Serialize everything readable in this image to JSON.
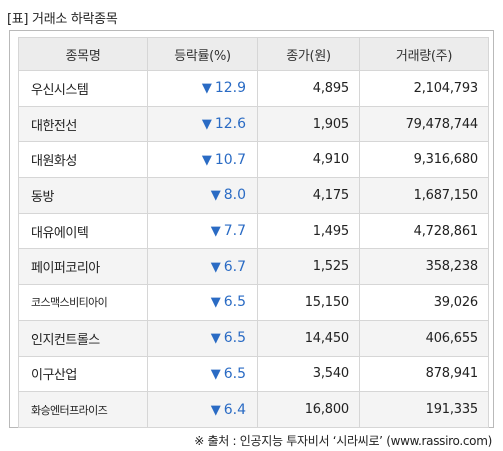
{
  "caption": "[표] 거래소 하락종목",
  "headers": [
    "종목명",
    "등락률(%)",
    "종가(원)",
    "거래량(주)"
  ],
  "down_arrow": "▼",
  "accent_color": "#2a6bc4",
  "rows": [
    {
      "name": "우신시스템",
      "rate": "12.9",
      "close": "4,895",
      "volume": "2,104,793"
    },
    {
      "name": "대한전선",
      "rate": "12.6",
      "close": "1,905",
      "volume": "79,478,744"
    },
    {
      "name": "대원화성",
      "rate": "10.7",
      "close": "4,910",
      "volume": "9,316,680"
    },
    {
      "name": "동방",
      "rate": "8.0",
      "close": "4,175",
      "volume": "1,687,150"
    },
    {
      "name": "대유에이텍",
      "rate": "7.7",
      "close": "1,495",
      "volume": "4,728,861"
    },
    {
      "name": "페이퍼코리아",
      "rate": "6.7",
      "close": "1,525",
      "volume": "358,238"
    },
    {
      "name": "코스맥스비티아이",
      "rate": "6.5",
      "close": "15,150",
      "volume": "39,026"
    },
    {
      "name": "인지컨트롤스",
      "rate": "6.5",
      "close": "14,450",
      "volume": "406,655"
    },
    {
      "name": "이구산업",
      "rate": "6.5",
      "close": "3,540",
      "volume": "878,941"
    },
    {
      "name": "화승엔터프라이즈",
      "rate": "6.4",
      "close": "16,800",
      "volume": "191,335"
    }
  ],
  "source": "※ 출처 : 인공지능 투자비서 ‘시라씨로’ (www.rassiro.com)"
}
